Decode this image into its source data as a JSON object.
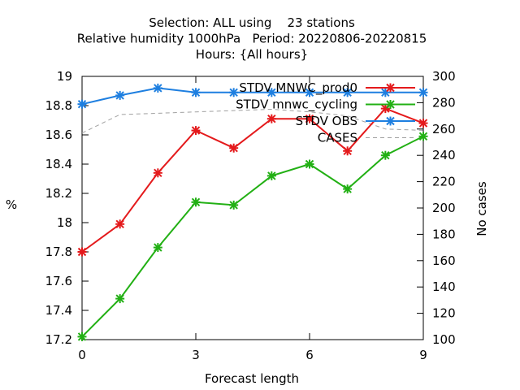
{
  "chart_data": {
    "type": "line",
    "title": [
      "Selection: ALL using    23 stations",
      "Relative humidity 1000hPa   Period: 20220806-20220815",
      "Hours: {All hours}"
    ],
    "xlabel": "Forecast length",
    "ylabel": "%",
    "y2label": "No cases",
    "xlim": [
      0,
      9
    ],
    "ylim": [
      17.2,
      19
    ],
    "y2lim": [
      100,
      300
    ],
    "x_ticks": [
      0,
      3,
      6,
      9
    ],
    "y_ticks": [
      17.2,
      17.4,
      17.6,
      17.8,
      18,
      18.2,
      18.4,
      18.6,
      18.8,
      19
    ],
    "y2_ticks": [
      100,
      120,
      140,
      160,
      180,
      200,
      220,
      240,
      260,
      280,
      300
    ],
    "grid": false,
    "legend_position": "top-right",
    "x": [
      0,
      1,
      2,
      3,
      4,
      5,
      6,
      7,
      8,
      9
    ],
    "series": [
      {
        "name": "STDV MNWC_prod0",
        "color": "#e41a1c",
        "axis": "y",
        "marker": "star",
        "dashed": false,
        "values": [
          17.8,
          17.99,
          18.34,
          18.63,
          18.51,
          18.71,
          18.71,
          18.49,
          18.78,
          18.68
        ]
      },
      {
        "name": "STDV mnwc_cycling",
        "color": "#22b014",
        "axis": "y",
        "marker": "star",
        "dashed": false,
        "values": [
          17.22,
          17.48,
          17.83,
          18.14,
          18.12,
          18.32,
          18.4,
          18.23,
          18.46,
          18.59
        ]
      },
      {
        "name": "STDV OBS",
        "color": "#1e7fe0",
        "axis": "y",
        "marker": "star",
        "dashed": false,
        "values": [
          18.81,
          18.87,
          18.92,
          18.89,
          18.89,
          18.89,
          18.89,
          18.89,
          18.89,
          18.89
        ]
      },
      {
        "name": "CASES",
        "color": "#a0a0a0",
        "axis": "y2",
        "marker": "none",
        "dashed": true,
        "values": [
          257,
          271,
          272,
          273,
          274,
          275,
          273,
          270,
          260,
          259
        ]
      }
    ]
  }
}
